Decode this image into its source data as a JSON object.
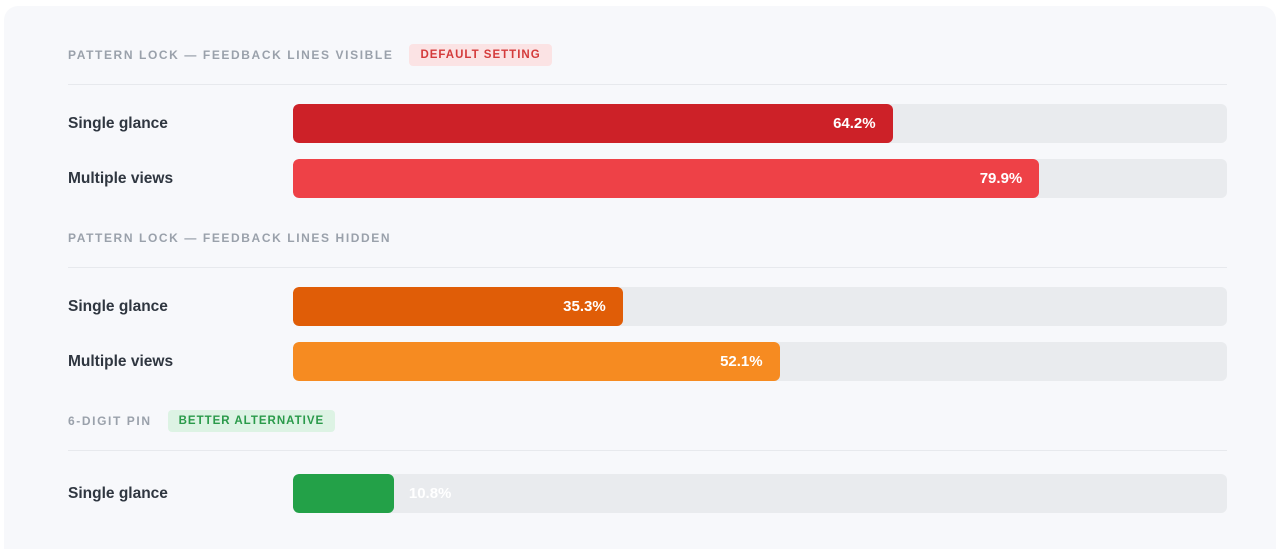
{
  "page": {
    "background": "#f7f8fb",
    "track_color": "#e9ebee",
    "divider_color": "#e7e9ed"
  },
  "chart_data": {
    "type": "bar",
    "orientation": "horizontal",
    "xlim": [
      0,
      100
    ],
    "unit": "%",
    "grid": false,
    "legend": false,
    "sections": [
      {
        "title": "PATTERN LOCK — FEEDBACK LINES VISIBLE",
        "badge": {
          "label": "DEFAULT SETTING",
          "text_color": "#d43b3b",
          "bg_color": "#fbe3e4"
        },
        "rows": [
          {
            "label": "Single glance",
            "value": 64.2,
            "display": "64.2%",
            "color": "#cd2128",
            "value_inside": true
          },
          {
            "label": "Multiple views",
            "value": 79.9,
            "display": "79.9%",
            "color": "#ee4147",
            "value_inside": true
          }
        ]
      },
      {
        "title": "PATTERN LOCK — FEEDBACK LINES HIDDEN",
        "badge": null,
        "rows": [
          {
            "label": "Single glance",
            "value": 35.3,
            "display": "35.3%",
            "color": "#e05d07",
            "value_inside": true
          },
          {
            "label": "Multiple views",
            "value": 52.1,
            "display": "52.1%",
            "color": "#f68b21",
            "value_inside": true
          }
        ]
      },
      {
        "title": "6-DIGIT PIN",
        "badge": {
          "label": "BETTER ALTERNATIVE",
          "text_color": "#2a9a4a",
          "bg_color": "#ddf3e4"
        },
        "rows": [
          {
            "label": "Single glance",
            "value": 10.8,
            "display": "10.8%",
            "color": "#23a148",
            "value_inside": false
          }
        ]
      }
    ]
  }
}
